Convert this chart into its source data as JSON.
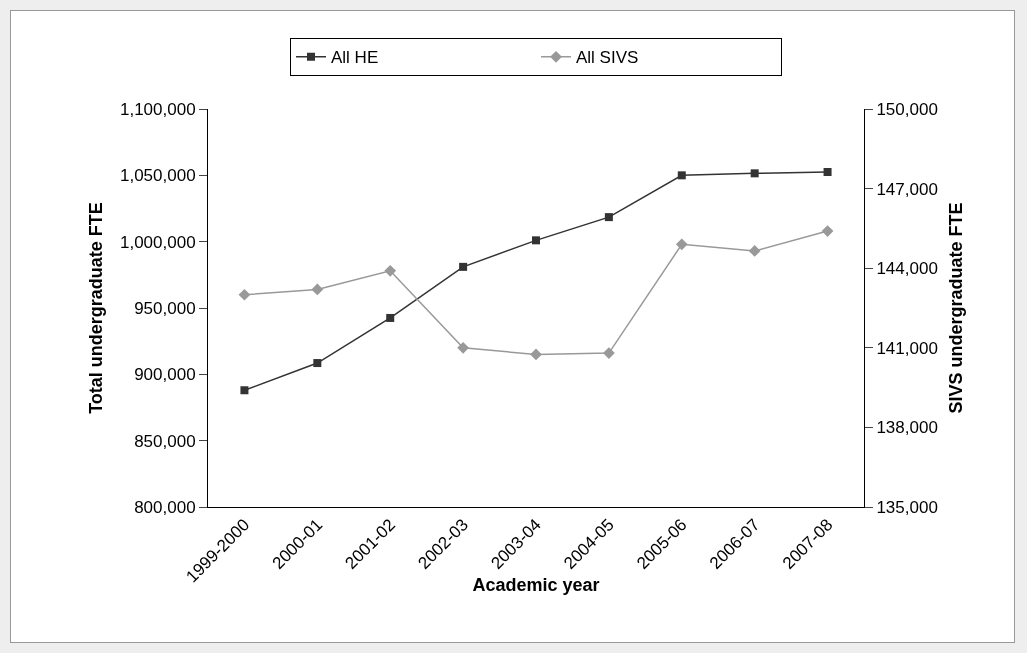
{
  "chart_data": {
    "type": "line",
    "xlabel": "Academic year",
    "ylabel": "Total undergraduate FTE",
    "y2label": "SIVS undergraduate FTE",
    "categories": [
      "1999-2000",
      "2000-01",
      "2001-02",
      "2002-03",
      "2003-04",
      "2004-05",
      "2005-06",
      "2006-07",
      "2007-08"
    ],
    "series": [
      {
        "name": "All HE",
        "color": "#333333",
        "marker": "square",
        "values": [
          888000,
          908500,
          942500,
          981000,
          1001000,
          1018500,
          1050000,
          1051500,
          1052500
        ]
      },
      {
        "name": "All SIVS",
        "color": "#999999",
        "marker": "diamond",
        "axis": "y2",
        "values": [
          143000,
          143200,
          143900,
          141000,
          140750,
          140800,
          144900,
          144650,
          145400
        ]
      }
    ],
    "ylim": [
      800000,
      1100000
    ],
    "yticks": [
      {
        "value": 800000,
        "label": "800,000"
      },
      {
        "value": 850000,
        "label": "850,000"
      },
      {
        "value": 900000,
        "label": "900,000"
      },
      {
        "value": 950000,
        "label": "950,000"
      },
      {
        "value": 1000000,
        "label": "1,000,000"
      },
      {
        "value": 1050000,
        "label": "1,050,000"
      },
      {
        "value": 1100000,
        "label": "1,100,000"
      }
    ],
    "y2lim": [
      135000,
      150000
    ],
    "y2ticks": [
      {
        "value": 135000,
        "label": "135,000"
      },
      {
        "value": 138000,
        "label": "138,000"
      },
      {
        "value": 141000,
        "label": "141,000"
      },
      {
        "value": 144000,
        "label": "144,000"
      },
      {
        "value": 147000,
        "label": "147,000"
      },
      {
        "value": 150000,
        "label": "150,000"
      }
    ],
    "grid": false,
    "legend": "top",
    "line_style": "solid"
  }
}
